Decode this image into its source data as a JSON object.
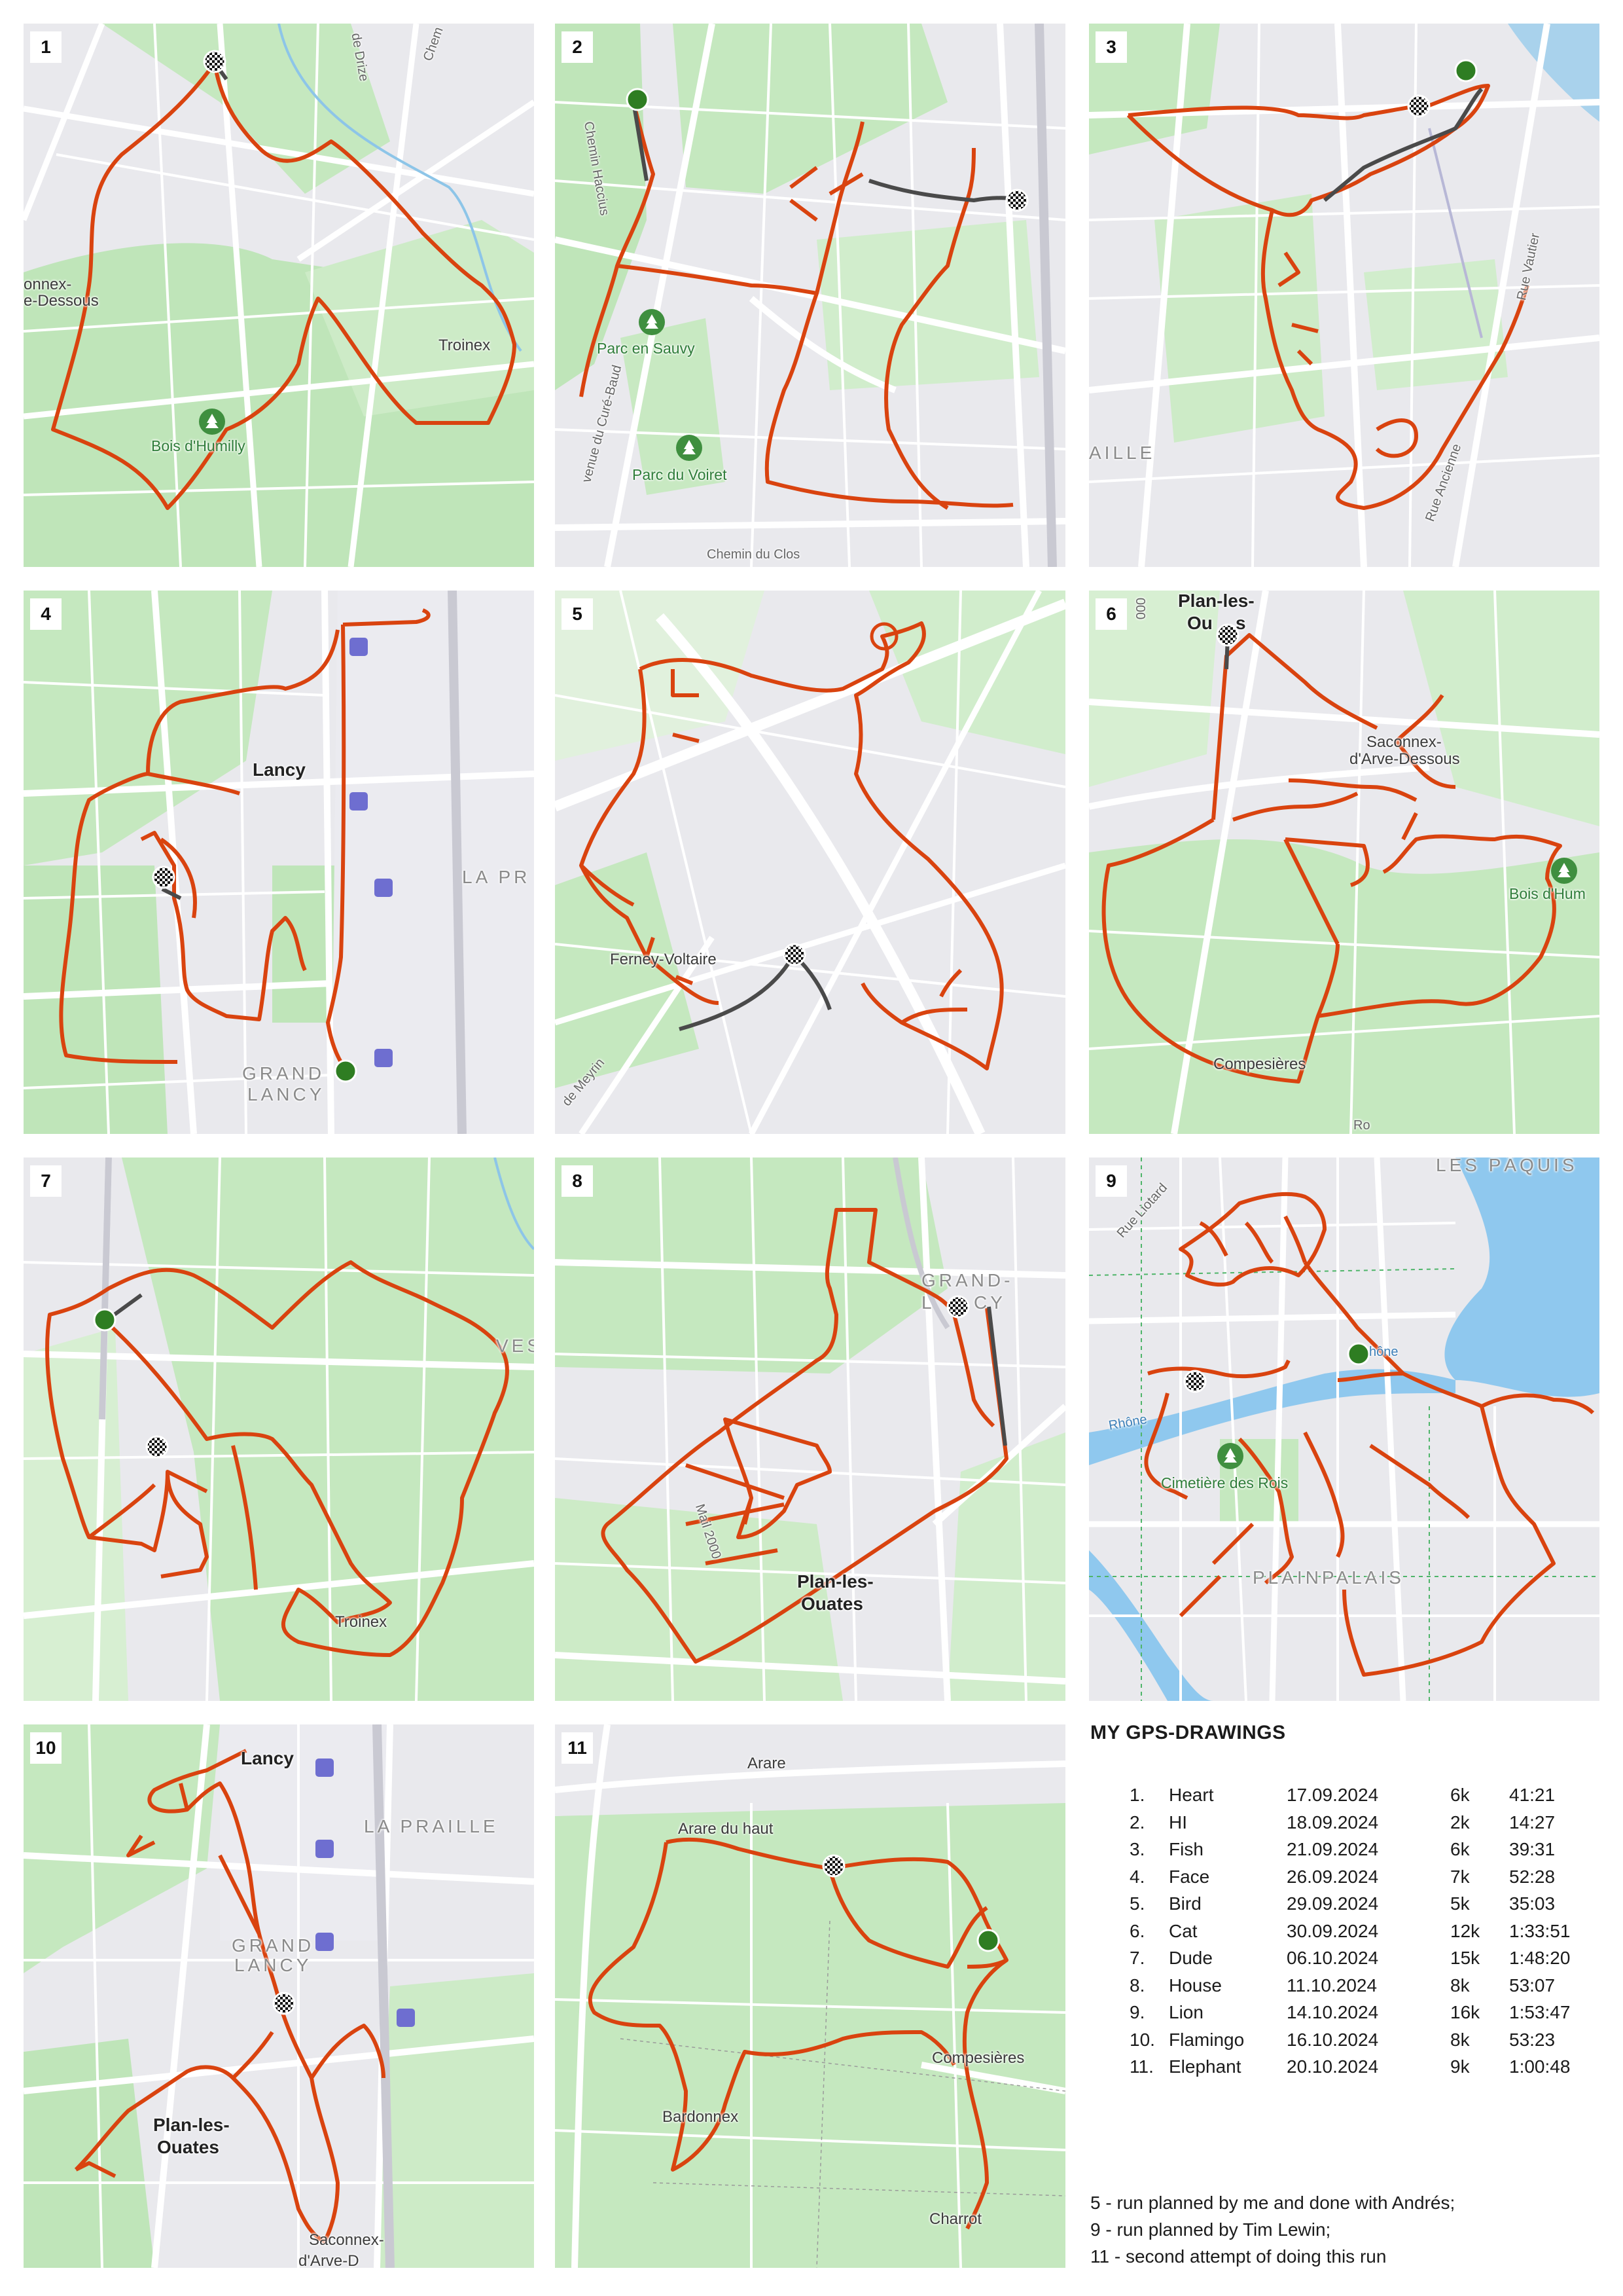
{
  "panels": [
    {
      "number": "1",
      "labels": [
        "de Drize",
        "Chem",
        "onnex-",
        "e-Dessous",
        "Troinex",
        "Bois d'Humilly"
      ]
    },
    {
      "number": "2",
      "labels": [
        "Chemin Haccius",
        "Parc en Sauvy",
        "Parc du Voiret",
        "venue du Curé-Baud",
        "Chemin du Clos"
      ]
    },
    {
      "number": "3",
      "labels": [
        "AILLE",
        "Rue Vautier",
        "Rue Ancienne"
      ]
    },
    {
      "number": "4",
      "labels": [
        "Lancy",
        "LA PR",
        "GRAND",
        "LANCY"
      ]
    },
    {
      "number": "5",
      "labels": [
        "Ferney-Voltaire",
        "de Meyrin"
      ]
    },
    {
      "number": "6",
      "labels": [
        "Plan-les-",
        "Ou",
        "s",
        "Saconnex-",
        "d'Arve-Dessous",
        "Bois d'Hum",
        "Compesières",
        "Ro",
        "000"
      ]
    },
    {
      "number": "7",
      "labels": [
        "Troinex",
        "VESS"
      ]
    },
    {
      "number": "8",
      "labels": [
        "GRAND-",
        "L",
        "CY",
        "Mail 2000",
        "Plan-les-",
        "Ouates"
      ]
    },
    {
      "number": "9",
      "labels": [
        "LES PÂQUIS",
        "Rue Liotard",
        "hône",
        "Rhône",
        "Cimetière des Rois",
        "PLAINPALAIS"
      ]
    },
    {
      "number": "10",
      "labels": [
        "Lancy",
        "LA PRAILLE",
        "GRAND",
        "LANCY",
        "Plan-les-",
        "Ouates",
        "Saconnex-",
        "d'Arve-D"
      ]
    },
    {
      "number": "11",
      "labels": [
        "Arare",
        "Arare du haut",
        "Compesières",
        "Bardonnex",
        "Charrot"
      ]
    }
  ],
  "legend": {
    "title": "MY GPS-DRAWINGS",
    "runs": [
      {
        "n": "1.",
        "name": "Heart",
        "date": "17.09.2024",
        "distance": "6k",
        "time": "41:21"
      },
      {
        "n": "2.",
        "name": "HI",
        "date": "18.09.2024",
        "distance": "2k",
        "time": "14:27"
      },
      {
        "n": "3.",
        "name": "Fish",
        "date": "21.09.2024",
        "distance": "6k",
        "time": "39:31"
      },
      {
        "n": "4.",
        "name": "Face",
        "date": "26.09.2024",
        "distance": "7k",
        "time": "52:28"
      },
      {
        "n": "5.",
        "name": "Bird",
        "date": "29.09.2024",
        "distance": "5k",
        "time": "35:03"
      },
      {
        "n": "6.",
        "name": "Cat",
        "date": "30.09.2024",
        "distance": "12k",
        "time": "1:33:51"
      },
      {
        "n": "7.",
        "name": "Dude",
        "date": "06.10.2024",
        "distance": "15k",
        "time": "1:48:20"
      },
      {
        "n": "8.",
        "name": "House",
        "date": "11.10.2024",
        "distance": "8k",
        "time": "53:07"
      },
      {
        "n": "9.",
        "name": "Lion",
        "date": "14.10.2024",
        "distance": "16k",
        "time": "1:53:47"
      },
      {
        "n": "10.",
        "name": "Flamingo",
        "date": "16.10.2024",
        "distance": "8k",
        "time": "53:23"
      },
      {
        "n": "11.",
        "name": "Elephant",
        "date": "20.10.2024",
        "distance": "9k",
        "time": "1:00:48"
      }
    ],
    "notes": [
      "5 - run planned by me and done with Andrés;",
      "9 - run planned by Tim Lewin;",
      "11 - second attempt of doing this run"
    ]
  },
  "colors": {
    "route": "#d9430f",
    "connector": "#4a4a4a",
    "park": "#bde5b8",
    "road": "#ffffff",
    "start": "#2e7d22"
  }
}
